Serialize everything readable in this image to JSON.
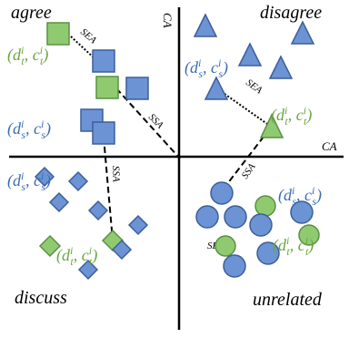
{
  "quadrants": {
    "top_left": "agree",
    "top_right": "disagree",
    "bottom_left": "discuss",
    "bottom_right": "unrelated"
  },
  "axes": {
    "vertical": "CA",
    "horizontal": "CA"
  },
  "links": {
    "sea": "SEA",
    "ssa": "SSA"
  },
  "tuples": {
    "source": {
      "d": "d",
      "d_sub": "s",
      "c": "c",
      "c_sub": "s",
      "sup": "i"
    },
    "target": {
      "d": "d",
      "d_sub": "t",
      "c": "c",
      "c_sub": "t",
      "sup": "i"
    }
  },
  "colors": {
    "source_fill": "#6c93d4",
    "source_stroke": "#3d5f9a",
    "target_fill": "#8fca70",
    "target_stroke": "#5a9140",
    "source_text": "#3d6cb4",
    "target_text": "#6aa642"
  }
}
